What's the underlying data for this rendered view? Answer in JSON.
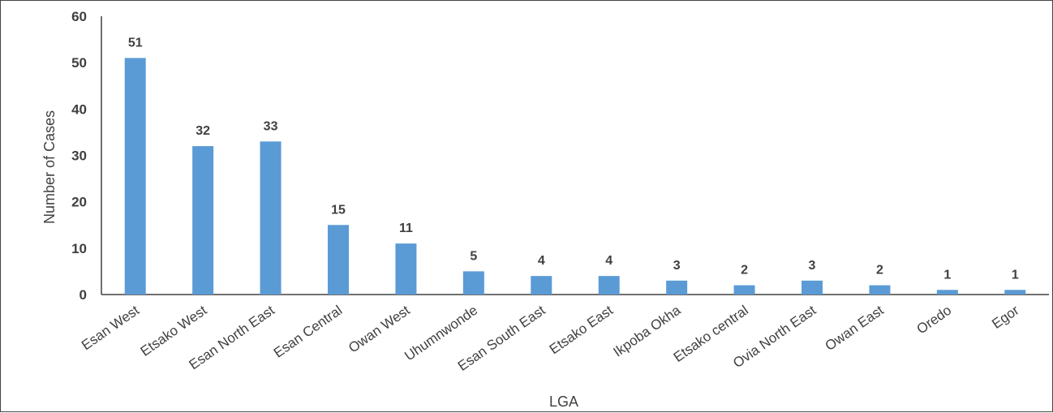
{
  "chart_data": {
    "type": "bar",
    "categories": [
      "Esan West",
      "Etsako West",
      "Esan North East",
      "Esan Central",
      "Owan West",
      "Uhumnwonde",
      "Esan South East",
      "Etsako East",
      "Ikpoba Okha",
      "Etsako central",
      "Ovia North East",
      "Owan East",
      "Oredo",
      "Egor"
    ],
    "values": [
      51,
      32,
      33,
      15,
      11,
      5,
      4,
      4,
      3,
      2,
      3,
      2,
      1,
      1
    ],
    "title": "",
    "xlabel": "LGA",
    "ylabel": "Number of Cases",
    "ylim": [
      0,
      60
    ],
    "yticks": [
      0,
      10,
      20,
      30,
      40,
      50,
      60
    ],
    "bar_color": "#5B9BD5",
    "data_labels": true,
    "grid": false,
    "legend": "none"
  }
}
